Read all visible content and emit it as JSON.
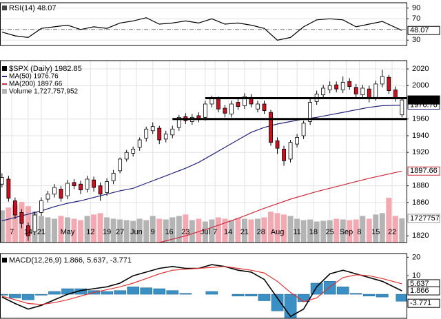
{
  "chart_data": [
    {
      "type": "line",
      "title": "RSI(14) 48.07",
      "xlim": [
        -0.6,
        123.4
      ],
      "ylim": [
        20,
        100
      ],
      "yticks": [
        90,
        70,
        30
      ],
      "reference_line": 50,
      "grid": true,
      "series": [
        {
          "color": "#000000",
          "x": [
            0,
            4,
            8,
            12,
            16,
            20,
            24,
            28,
            32,
            36,
            40,
            44,
            48,
            52,
            56,
            60,
            64,
            68,
            72,
            76,
            80,
            84,
            88,
            92,
            96,
            100,
            104,
            108,
            112,
            116,
            122
          ],
          "values": [
            45,
            38,
            35,
            52,
            55,
            58,
            50,
            55,
            52,
            62,
            66,
            72,
            60,
            62,
            66,
            62,
            70,
            60,
            62,
            58,
            52,
            30,
            35,
            55,
            68,
            70,
            68,
            55,
            60,
            65,
            48.07
          ]
        }
      ]
    },
    {
      "type": "candlestick",
      "title": "$SPX (Daily) 1982.85",
      "xlim": [
        -0.6,
        123.4
      ],
      "ylim": [
        1812,
        2030
      ],
      "yticks": [
        2020,
        2000,
        1960,
        1940,
        1920,
        1880,
        1860,
        1820
      ],
      "grid": true,
      "xticks": [
        {
          "value": 3,
          "label": "7"
        },
        {
          "value": 8,
          "label": "14"
        },
        {
          "value": 12,
          "label": "21"
        },
        {
          "value": 20,
          "label": "May"
        },
        {
          "value": 27,
          "label": "12"
        },
        {
          "value": 32,
          "label": "19"
        },
        {
          "value": 36,
          "label": "27"
        },
        {
          "value": 41,
          "label": "Jun"
        },
        {
          "value": 46,
          "label": "9"
        },
        {
          "value": 51,
          "label": "16"
        },
        {
          "value": 56,
          "label": "23"
        },
        {
          "value": 62,
          "label": "Jul"
        },
        {
          "value": 65,
          "label": "7"
        },
        {
          "value": 69,
          "label": "14"
        },
        {
          "value": 74,
          "label": "21"
        },
        {
          "value": 79,
          "label": "28"
        },
        {
          "value": 84,
          "label": "Aug"
        },
        {
          "value": 90,
          "label": "11"
        },
        {
          "value": 95,
          "label": "18"
        },
        {
          "value": 100,
          "label": "25"
        },
        {
          "value": 105,
          "label": "Sep"
        },
        {
          "value": 109,
          "label": "8"
        },
        {
          "value": 114,
          "label": "15"
        },
        {
          "value": 119,
          "label": "22"
        }
      ],
      "candles": {
        "up_color": "#ffffff",
        "down_color": "#cc1020",
        "x": [
          0,
          2,
          4,
          6,
          8,
          10,
          12,
          14,
          16,
          18,
          20,
          22,
          24,
          26,
          28,
          30,
          32,
          34,
          36,
          38,
          40,
          42,
          44,
          46,
          48,
          50,
          52,
          54,
          56,
          58,
          60,
          62,
          64,
          66,
          68,
          70,
          72,
          74,
          76,
          78,
          80,
          82,
          84,
          86,
          88,
          90,
          92,
          94,
          96,
          98,
          100,
          102,
          104,
          106,
          108,
          110,
          112,
          114,
          116,
          118,
          120,
          122
        ],
        "open": [
          1882,
          1888,
          1862,
          1848,
          1832,
          1825,
          1848,
          1864,
          1870,
          1876,
          1868,
          1884,
          1882,
          1876,
          1887,
          1880,
          1872,
          1886,
          1898,
          1912,
          1919,
          1926,
          1937,
          1946,
          1949,
          1936,
          1941,
          1950,
          1963,
          1957,
          1964,
          1962,
          1978,
          1984,
          1973,
          1966,
          1980,
          1976,
          1986,
          1972,
          1978,
          1968,
          1934,
          1924,
          1912,
          1930,
          1940,
          1957,
          1981,
          1989,
          1995,
          2001,
          1995,
          2005,
          1998,
          1989,
          1996,
          1986,
          2002,
          2010,
          1995,
          1965
        ],
        "high": [
          1895,
          1892,
          1866,
          1852,
          1836,
          1849,
          1866,
          1874,
          1882,
          1880,
          1887,
          1888,
          1886,
          1892,
          1891,
          1884,
          1889,
          1899,
          1914,
          1923,
          1927,
          1938,
          1951,
          1956,
          1952,
          1946,
          1952,
          1965,
          1967,
          1966,
          1968,
          1982,
          1988,
          1987,
          1977,
          1982,
          1984,
          1991,
          1990,
          1982,
          1982,
          1971,
          1938,
          1928,
          1935,
          1942,
          1958,
          1984,
          1994,
          2001,
          2005,
          2005,
          2011,
          2009,
          2002,
          2001,
          2000,
          2006,
          2019,
          2013,
          1999,
          1986
        ],
        "low": [
          1878,
          1861,
          1840,
          1829,
          1814,
          1821,
          1844,
          1860,
          1866,
          1861,
          1864,
          1876,
          1870,
          1872,
          1873,
          1862,
          1868,
          1882,
          1895,
          1909,
          1915,
          1922,
          1933,
          1942,
          1930,
          1932,
          1937,
          1946,
          1954,
          1953,
          1956,
          1958,
          1974,
          1968,
          1962,
          1962,
          1971,
          1972,
          1974,
          1968,
          1966,
          1928,
          1918,
          1904,
          1908,
          1926,
          1936,
          1953,
          1977,
          1985,
          1991,
          1992,
          1991,
          1995,
          1986,
          1985,
          1980,
          1982,
          1998,
          1990,
          1981,
          1962
        ],
        "close": [
          1890,
          1865,
          1845,
          1835,
          1820,
          1845,
          1862,
          1870,
          1878,
          1865,
          1883,
          1880,
          1875,
          1888,
          1878,
          1870,
          1885,
          1895,
          1912,
          1920,
          1924,
          1935,
          1948,
          1951,
          1935,
          1942,
          1948,
          1962,
          1958,
          1962,
          1960,
          1978,
          1985,
          1972,
          1967,
          1978,
          1975,
          1987,
          1978,
          1978,
          1970,
          1932,
          1925,
          1910,
          1932,
          1938,
          1955,
          1980,
          1990,
          1997,
          2000,
          1996,
          2004,
          1999,
          1990,
          1997,
          1985,
          2002,
          2011,
          1994,
          1985,
          1982.85
        ]
      },
      "series": [
        {
          "name": "MA(50) 1976.76",
          "color": "#22227a",
          "x": [
            0,
            4,
            8,
            12,
            16,
            20,
            24,
            28,
            32,
            36,
            40,
            44,
            48,
            52,
            56,
            60,
            64,
            68,
            72,
            76,
            80,
            84,
            88,
            92,
            96,
            100,
            104,
            108,
            112,
            116,
            122
          ],
          "values": [
            1838,
            1842,
            1846,
            1850,
            1855,
            1859,
            1862,
            1866,
            1870,
            1874,
            1877,
            1883,
            1889,
            1895,
            1901,
            1908,
            1917,
            1926,
            1935,
            1944,
            1950,
            1954,
            1957,
            1960,
            1962,
            1965,
            1968,
            1971,
            1974,
            1976,
            1976.76
          ]
        },
        {
          "name": "MA(200) 1897.66",
          "color": "#cc2a3c",
          "x": [
            48,
            56,
            64,
            72,
            80,
            88,
            96,
            104,
            112,
            122
          ],
          "values": [
            1812,
            1820,
            1830,
            1841,
            1853,
            1864,
            1873,
            1881,
            1889,
            1897.66
          ]
        }
      ],
      "volume": {
        "name": "Volume 1,727,757,952",
        "ylim": [
          0,
          13000000
        ],
        "up_color": "#b4b4b4",
        "down_color": "#f2a9b2",
        "x": [
          0,
          2,
          4,
          6,
          8,
          10,
          12,
          14,
          16,
          18,
          20,
          22,
          24,
          26,
          28,
          30,
          32,
          34,
          36,
          38,
          40,
          42,
          44,
          46,
          48,
          50,
          52,
          54,
          56,
          58,
          60,
          62,
          64,
          66,
          68,
          70,
          72,
          74,
          76,
          78,
          80,
          82,
          84,
          86,
          88,
          90,
          92,
          94,
          96,
          98,
          100,
          102,
          104,
          106,
          108,
          110,
          112,
          114,
          116,
          118,
          120,
          122
        ],
        "values": [
          2300000,
          2500000,
          2700000,
          2900000,
          2600000,
          2200000,
          1900000,
          1800000,
          1700000,
          1900000,
          1800000,
          1700000,
          1600000,
          1900000,
          2000000,
          2100000,
          1800000,
          1700000,
          1650000,
          1600000,
          1550000,
          1700000,
          1600000,
          1900000,
          1700000,
          1650000,
          1800000,
          1900000,
          2000000,
          1600000,
          1700000,
          1500000,
          1650000,
          1800000,
          1700000,
          1600000,
          1750000,
          1700000,
          1650000,
          1700000,
          1800000,
          2200000,
          2100000,
          2000000,
          1900000,
          1700000,
          1600000,
          1650000,
          1500000,
          1550000,
          1600000,
          1700000,
          1650000,
          1600000,
          1650000,
          1900000,
          1700000,
          2000000,
          2100000,
          3200000,
          1900000,
          1727757
        ]
      },
      "levels": [
        {
          "value": 1985,
          "from": 62
        },
        {
          "value": 1960,
          "from": 52
        }
      ]
    },
    {
      "type": "macd",
      "title": "MACD(12,26,9) 1.866, 5.637, -3.771",
      "xlim": [
        -0.6,
        123.4
      ],
      "ylim": [
        -13,
        22
      ],
      "yticks": [
        20,
        10
      ],
      "series": [
        {
          "color": "#000000",
          "x": [
            0,
            4,
            8,
            12,
            16,
            20,
            24,
            28,
            32,
            36,
            40,
            44,
            48,
            52,
            56,
            60,
            64,
            68,
            72,
            76,
            80,
            84,
            88,
            92,
            96,
            100,
            104,
            108,
            112,
            116,
            122
          ],
          "values": [
            -1.5,
            -5,
            -8,
            -6,
            -3,
            0,
            2,
            3,
            4,
            6,
            10,
            12,
            14,
            15,
            14,
            14,
            16,
            15,
            13,
            12,
            8,
            -2,
            -12,
            -8,
            4,
            11,
            13,
            11,
            9,
            7,
            1.866
          ]
        },
        {
          "color": "#e03030",
          "x": [
            0,
            4,
            8,
            12,
            16,
            20,
            24,
            28,
            32,
            36,
            40,
            44,
            48,
            52,
            56,
            60,
            64,
            68,
            72,
            76,
            80,
            84,
            88,
            92,
            96,
            100,
            104,
            108,
            112,
            116,
            122
          ],
          "values": [
            -1,
            -3,
            -5,
            -5.5,
            -4.5,
            -3,
            -1,
            1,
            2.5,
            4,
            6,
            8.5,
            11,
            13,
            13.5,
            14,
            14.5,
            15,
            14,
            13,
            11.5,
            7,
            1,
            -4,
            -2,
            4,
            9,
            10.5,
            10,
            8.5,
            5.637
          ]
        }
      ],
      "histogram": {
        "color": "#3a8fc4",
        "x": [
          0,
          4,
          8,
          12,
          16,
          20,
          24,
          28,
          32,
          36,
          40,
          44,
          48,
          52,
          56,
          60,
          64,
          68,
          72,
          76,
          80,
          84,
          88,
          92,
          96,
          100,
          104,
          108,
          112,
          116,
          122
        ],
        "values": [
          -0.5,
          -2,
          -3,
          -0.5,
          1.5,
          3,
          3,
          2,
          1.5,
          2,
          4,
          3.5,
          3,
          2,
          0.5,
          0,
          1.5,
          0,
          -1,
          -1,
          -3.5,
          -9,
          -13,
          -4,
          6,
          7,
          4,
          0.5,
          -1,
          -1.5,
          -3.771
        ]
      }
    }
  ]
}
